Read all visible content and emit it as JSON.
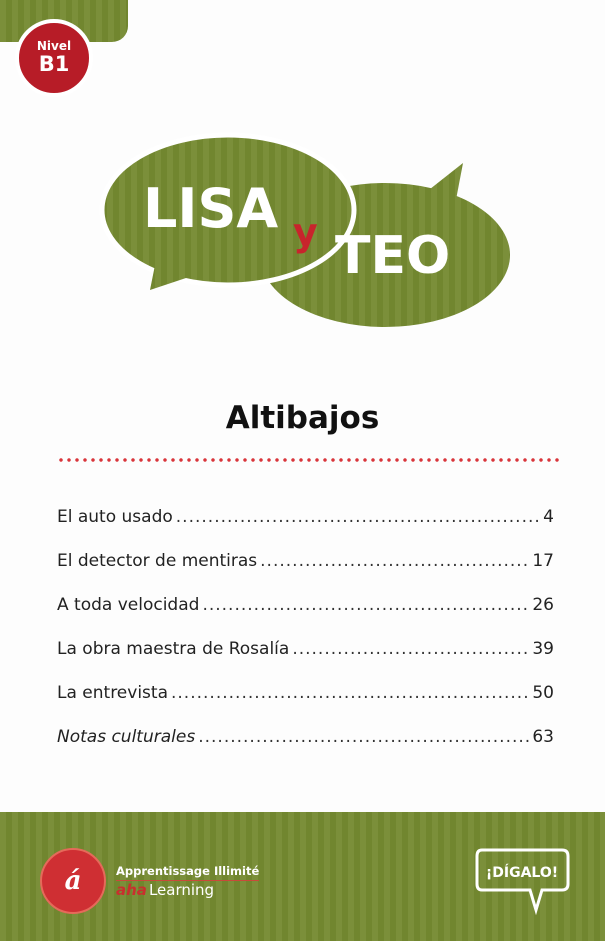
{
  "badge": {
    "line1": "Nivel",
    "line2": "B1"
  },
  "logo": {
    "word1": "LISA",
    "connector": "y",
    "word2": "TEO"
  },
  "title": "Altibajos",
  "toc": [
    {
      "title": "El auto usado",
      "page": "4",
      "italic": false
    },
    {
      "title": "El detector de mentiras",
      "page": "17",
      "italic": false
    },
    {
      "title": "A toda velocidad",
      "page": "26",
      "italic": false
    },
    {
      "title": "La obra maestra de Rosalía",
      "page": "39",
      "italic": false
    },
    {
      "title": "La entrevista",
      "page": "50",
      "italic": false
    },
    {
      "title": "Notas culturales",
      "page": "63",
      "italic": true
    }
  ],
  "footer": {
    "publisher_line1": "Apprentissage Illimité",
    "publisher_brand": "aha",
    "publisher_line2": "Learning",
    "series_logo": "¡DÍGALO!"
  },
  "colors": {
    "green": "#7b8f3a",
    "red": "#b71c27",
    "dots": "#d9353b"
  }
}
